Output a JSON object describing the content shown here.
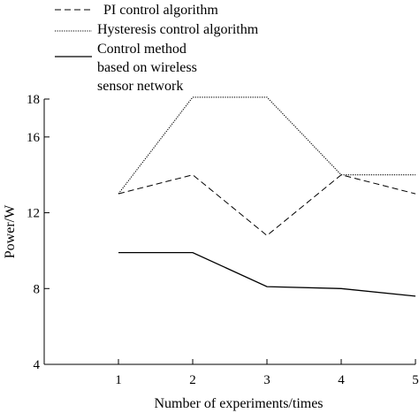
{
  "chart_data": {
    "type": "line",
    "x": [
      1,
      2,
      3,
      4,
      5
    ],
    "xlim": [
      0,
      5
    ],
    "ylim": [
      4,
      18
    ],
    "yticks": [
      4,
      8,
      12,
      16,
      18
    ],
    "xticks": [
      1,
      2,
      3,
      4,
      5
    ],
    "xlabel": "Number of experiments/times",
    "ylabel": "Power/W",
    "grid": false,
    "legend_position": "top-left",
    "series": [
      {
        "name": "PI control algorithm",
        "style": "dashed",
        "values": [
          13.0,
          14.0,
          10.8,
          14.0,
          13.0
        ]
      },
      {
        "name": "Hysteresis control algorithm",
        "style": "dotted",
        "values": [
          13.0,
          18.1,
          18.1,
          14.0,
          14.0
        ]
      },
      {
        "name": "Control method based on wireless sensor network",
        "legend_lines": [
          "Control method",
          "based on wireless",
          "sensor network"
        ],
        "style": "solid",
        "values": [
          9.9,
          9.9,
          8.1,
          8.0,
          7.6
        ]
      }
    ]
  }
}
